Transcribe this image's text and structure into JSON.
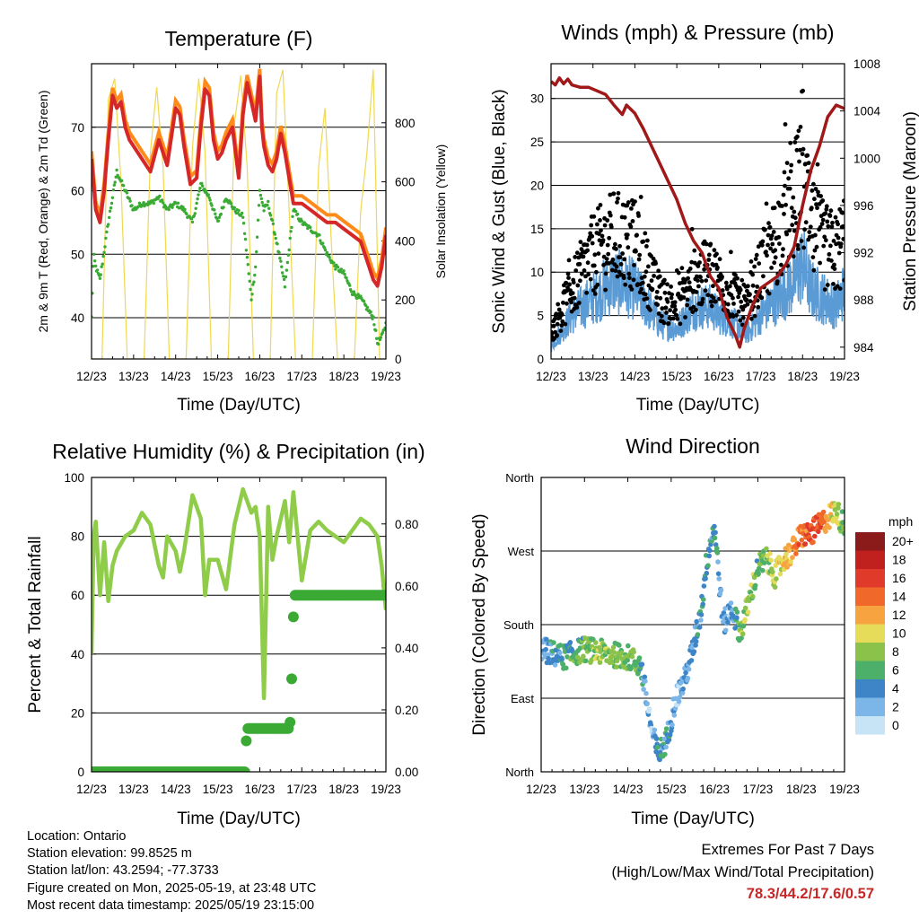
{
  "footer": {
    "location": "Location: Ontario",
    "elevation": "Station elevation: 99.8525 m",
    "latlon": "Station lat/lon: 43.2594; -77.3733",
    "created": "Figure created on Mon, 2025-05-19, at 23:48 UTC",
    "recent": "Most recent data timestamp: 2025/05/19 23:15:00",
    "extremes_title": "Extremes For Past 7 Days",
    "extremes_subtitle": "(High/Low/Max Wind/Total Precipitation)",
    "extremes_values": "78.3/44.2/17.6/0.57"
  },
  "chart_data": [
    {
      "id": "temperature",
      "type": "line",
      "title": "Temperature (F)",
      "xlabel": "Time (Day/UTC)",
      "ylabel": "2m & 9m T (Red, Orange) & 2m Td (Green)",
      "ylabel_right": "Solar Insolation (Yellow)",
      "xticks": [
        "12/23",
        "13/23",
        "14/23",
        "15/23",
        "16/23",
        "17/23",
        "18/23",
        "19/23"
      ],
      "xlim": [
        12,
        19
      ],
      "ylim": [
        33.5,
        80
      ],
      "yticks": [
        40,
        50,
        60,
        70
      ],
      "ylim_right": [
        0,
        1000
      ],
      "yticks_right": [
        0,
        200,
        400,
        600,
        800
      ],
      "grid": "horizontal",
      "colors": {
        "t2m": "#d62728",
        "t9m": "#ff8c1a",
        "td": "#3aaa35",
        "solar": "#f0d850"
      },
      "series": [
        {
          "key": "t2m",
          "x": [
            12.0,
            12.1,
            12.2,
            12.3,
            12.4,
            12.5,
            12.6,
            12.7,
            12.8,
            12.9,
            13.0,
            13.2,
            13.4,
            13.6,
            13.8,
            14.0,
            14.1,
            14.2,
            14.35,
            14.5,
            14.6,
            14.7,
            14.8,
            14.9,
            15.0,
            15.1,
            15.2,
            15.35,
            15.5,
            15.6,
            15.7,
            15.8,
            15.9,
            16.0,
            16.05,
            16.1,
            16.2,
            16.3,
            16.4,
            16.5,
            16.6,
            16.7,
            16.8,
            17.0,
            17.2,
            17.4,
            17.6,
            17.8,
            18.0,
            18.2,
            18.4,
            18.5,
            18.6,
            18.7,
            18.8,
            18.9,
            19.0
          ],
          "values": [
            65,
            57,
            55,
            60,
            68,
            75,
            73,
            74,
            70,
            68,
            67,
            65,
            63,
            68,
            64,
            73,
            72,
            67,
            61,
            62,
            70,
            76,
            75,
            68,
            65,
            66,
            68,
            70,
            62,
            72,
            77,
            74,
            71,
            78,
            70,
            67,
            64,
            63,
            65,
            69,
            66,
            62,
            58,
            58,
            57,
            56,
            55,
            55,
            54,
            53,
            52,
            50,
            48,
            46,
            45,
            48,
            53
          ]
        },
        {
          "key": "td",
          "x": [
            12.0,
            12.05,
            12.1,
            12.2,
            12.4,
            12.6,
            12.8,
            13.0,
            13.2,
            13.4,
            13.6,
            13.8,
            14.0,
            14.2,
            14.4,
            14.6,
            14.8,
            15.0,
            15.2,
            15.4,
            15.6,
            15.8,
            15.9,
            16.0,
            16.1,
            16.2,
            16.4,
            16.6,
            16.8,
            17.0,
            17.2,
            17.4,
            17.6,
            17.8,
            18.0,
            18.2,
            18.4,
            18.6,
            18.7,
            18.8,
            18.9,
            19.0
          ],
          "values": [
            40,
            50,
            48,
            46,
            55,
            63,
            60,
            57,
            58,
            58,
            59,
            57,
            58,
            57,
            55,
            61,
            59,
            55,
            59,
            57,
            56,
            43,
            48,
            60,
            57,
            58,
            52,
            45,
            57,
            55,
            54,
            53,
            50,
            48,
            47,
            44,
            43,
            41,
            40,
            36,
            37,
            39
          ]
        },
        {
          "key": "solar",
          "x": [
            12.0,
            12.25,
            12.4,
            12.55,
            12.7,
            12.85,
            13.25,
            13.4,
            13.55,
            13.7,
            13.85,
            14.25,
            14.4,
            14.55,
            14.7,
            14.85,
            15.25,
            15.4,
            15.55,
            15.7,
            15.85,
            16.25,
            16.4,
            16.55,
            16.7,
            16.85,
            17.25,
            17.4,
            17.55,
            17.7,
            17.85,
            18.25,
            18.4,
            18.55,
            18.7,
            18.85,
            19.0
          ],
          "values": [
            0,
            0,
            880,
            950,
            600,
            0,
            0,
            700,
            920,
            650,
            0,
            0,
            720,
            950,
            700,
            0,
            0,
            800,
            960,
            650,
            0,
            0,
            900,
            980,
            500,
            0,
            0,
            650,
            850,
            400,
            0,
            0,
            500,
            700,
            980,
            0,
            0
          ]
        }
      ],
      "series_t9m_offset": 1.2
    },
    {
      "id": "winds",
      "type": "scatter",
      "title": "Winds (mph) & Pressure (mb)",
      "xlabel": "Time (Day/UTC)",
      "ylabel": "Sonic Wind & Gust (Blue, Black)",
      "ylabel_right": "Station Pressure (Maroon)",
      "xticks": [
        "12/23",
        "13/23",
        "14/23",
        "15/23",
        "16/23",
        "17/23",
        "18/23",
        "19/23"
      ],
      "xlim": [
        12,
        19
      ],
      "ylim": [
        0,
        34
      ],
      "yticks": [
        0,
        5,
        10,
        15,
        20,
        25,
        30
      ],
      "ylim_right": [
        983,
        1008
      ],
      "yticks_right": [
        984,
        988,
        992,
        996,
        1000,
        1004,
        1008
      ],
      "grid": "horizontal",
      "colors": {
        "wind": "#5b9bd5",
        "gust": "#000000",
        "pressure": "#a01818"
      },
      "series": [
        {
          "key": "pressure",
          "x": [
            12.0,
            12.1,
            12.2,
            12.3,
            12.4,
            12.5,
            12.7,
            12.9,
            13.1,
            13.3,
            13.5,
            13.7,
            13.8,
            14.0,
            14.2,
            14.4,
            14.6,
            14.8,
            15.0,
            15.2,
            15.4,
            15.6,
            15.8,
            16.0,
            16.2,
            16.4,
            16.5,
            16.6,
            16.7,
            16.8,
            17.0,
            17.2,
            17.4,
            17.6,
            17.8,
            18.0,
            18.2,
            18.4,
            18.6,
            18.8,
            19.0
          ],
          "values": [
            1006.5,
            1006.2,
            1006.8,
            1006.3,
            1006.7,
            1006.2,
            1006,
            1006,
            1005.7,
            1005.4,
            1004.5,
            1003.7,
            1004.5,
            1003.8,
            1002.5,
            1001,
            999.5,
            998,
            996.5,
            994.5,
            993,
            992,
            990,
            989,
            986.5,
            985,
            984,
            985.5,
            986.5,
            987.5,
            989,
            989.5,
            990,
            991,
            992.5,
            996,
            999,
            1001,
            1003.5,
            1004.5,
            1004.2
          ]
        },
        {
          "key": "wind_mean",
          "x": [
            12.0,
            12.5,
            13.0,
            13.5,
            14.0,
            14.3,
            14.6,
            15.0,
            15.4,
            15.8,
            16.0,
            16.4,
            16.7,
            17.0,
            17.4,
            17.8,
            18.0,
            18.2,
            18.5,
            18.8,
            19.0
          ],
          "values": [
            1.5,
            5,
            7,
            9,
            8,
            6,
            4,
            3.5,
            6,
            6,
            5,
            4,
            3,
            5,
            7,
            9,
            11,
            8,
            7,
            6,
            8
          ]
        },
        {
          "key": "gust_mean",
          "x": [
            12.0,
            12.5,
            13.0,
            13.5,
            14.0,
            14.3,
            14.6,
            15.0,
            15.4,
            15.8,
            16.0,
            16.4,
            16.7,
            17.0,
            17.4,
            17.8,
            18.0,
            18.2,
            18.5,
            18.8,
            19.0
          ],
          "values": [
            3,
            8,
            12,
            14,
            13,
            10,
            7,
            6,
            9,
            10,
            9,
            7,
            6,
            10,
            14,
            18,
            20,
            15,
            13,
            12,
            14
          ]
        }
      ]
    },
    {
      "id": "rh",
      "type": "line",
      "title": "Relative Humidity (%) & Precipitation (in)",
      "xlabel": "Time (Day/UTC)",
      "ylabel": "Percent & Total Rainfall",
      "xticks": [
        "12/23",
        "13/23",
        "14/23",
        "15/23",
        "16/23",
        "17/23",
        "18/23",
        "19/23"
      ],
      "xlim": [
        12,
        19
      ],
      "ylim": [
        0,
        100
      ],
      "yticks": [
        0,
        20,
        40,
        60,
        80,
        100
      ],
      "ylim_right": [
        0,
        0.95
      ],
      "yticks_right": [
        "0.00",
        "0.20",
        "0.40",
        "0.60",
        "0.80"
      ],
      "grid": "horizontal",
      "colors": {
        "rh": "#8fcc4a",
        "precip": "#3aaa35"
      },
      "series": [
        {
          "key": "rh",
          "x": [
            12.0,
            12.05,
            12.1,
            12.2,
            12.3,
            12.4,
            12.5,
            12.6,
            12.8,
            13.0,
            13.2,
            13.4,
            13.6,
            13.7,
            13.8,
            14.0,
            14.1,
            14.2,
            14.4,
            14.6,
            14.7,
            14.8,
            15.0,
            15.2,
            15.4,
            15.6,
            15.8,
            15.9,
            16.0,
            16.1,
            16.2,
            16.3,
            16.4,
            16.6,
            16.7,
            16.8,
            17.0,
            17.2,
            17.4,
            17.6,
            17.8,
            18.0,
            18.2,
            18.4,
            18.6,
            18.8,
            18.9,
            19.0
          ],
          "values": [
            40,
            80,
            85,
            60,
            78,
            58,
            70,
            75,
            80,
            82,
            88,
            84,
            70,
            66,
            80,
            75,
            68,
            75,
            94,
            86,
            60,
            72,
            72,
            62,
            84,
            96,
            88,
            90,
            80,
            25,
            90,
            72,
            80,
            92,
            78,
            95,
            65,
            82,
            85,
            82,
            80,
            78,
            82,
            86,
            84,
            80,
            70,
            55
          ]
        },
        {
          "key": "precip",
          "x": [
            12.0,
            15.65,
            15.66,
            15.68,
            15.7,
            16.7,
            16.72,
            16.74,
            16.76,
            16.78,
            16.8,
            16.82,
            16.84,
            19.0
          ],
          "values": [
            0,
            0,
            0.05,
            0.1,
            0.14,
            0.14,
            0.16,
            0.2,
            0.3,
            0.42,
            0.5,
            0.55,
            0.57,
            0.57
          ]
        }
      ]
    },
    {
      "id": "wind_direction",
      "type": "scatter",
      "title": "Wind Direction",
      "xlabel": "Time (Day/UTC)",
      "ylabel": "Direction (Colored By Speed)",
      "xticks": [
        "12/23",
        "13/23",
        "14/23",
        "15/23",
        "16/23",
        "17/23",
        "18/23",
        "19/23"
      ],
      "xlim": [
        12,
        19
      ],
      "ylim": [
        0,
        360
      ],
      "yticks": [
        "North",
        "East",
        "South",
        "West",
        "North"
      ],
      "grid": "horizontal",
      "legend": {
        "title": "mph",
        "labels": [
          "20+",
          "18",
          "16",
          "14",
          "12",
          "10",
          "8",
          "6",
          "4",
          "2",
          "0"
        ],
        "colors": [
          "#8b1a1a",
          "#c0211f",
          "#e03a2a",
          "#f0682a",
          "#f7a340",
          "#e6dc5a",
          "#8bc34a",
          "#4caf6a",
          "#3d85c6",
          "#7cb6e8",
          "#c7e4f6"
        ],
        "placement": "right"
      },
      "series": [
        {
          "key": "direction",
          "x": [
            12.0,
            12.5,
            13.0,
            13.5,
            14.0,
            14.3,
            14.55,
            14.7,
            14.9,
            15.1,
            15.3,
            15.5,
            15.7,
            15.8,
            15.9,
            16.0,
            16.2,
            16.4,
            16.6,
            16.8,
            17.0,
            17.2,
            17.4,
            17.6,
            17.8,
            18.0,
            18.2,
            18.4,
            18.6,
            18.8,
            19.0
          ],
          "values": [
            150,
            140,
            150,
            145,
            140,
            130,
            50,
            20,
            40,
            90,
            110,
            150,
            200,
            250,
            280,
            300,
            180,
            200,
            170,
            210,
            250,
            260,
            240,
            260,
            270,
            290,
            290,
            300,
            310,
            320,
            300
          ]
        },
        {
          "key": "speed",
          "x": [
            12.0,
            12.5,
            13.0,
            13.5,
            14.0,
            14.3,
            14.55,
            14.7,
            14.9,
            15.1,
            15.3,
            15.5,
            15.7,
            15.8,
            15.9,
            16.0,
            16.2,
            16.4,
            16.6,
            16.8,
            17.0,
            17.2,
            17.4,
            17.6,
            17.8,
            18.0,
            18.2,
            18.4,
            18.6,
            18.8,
            19.0
          ],
          "values": [
            3,
            6,
            8,
            9,
            8,
            6,
            2,
            6,
            5,
            3,
            4,
            4,
            5,
            6,
            6,
            5,
            4,
            3,
            8,
            10,
            7,
            9,
            10,
            11,
            13,
            15,
            16,
            17,
            12,
            10,
            8
          ]
        }
      ]
    }
  ]
}
